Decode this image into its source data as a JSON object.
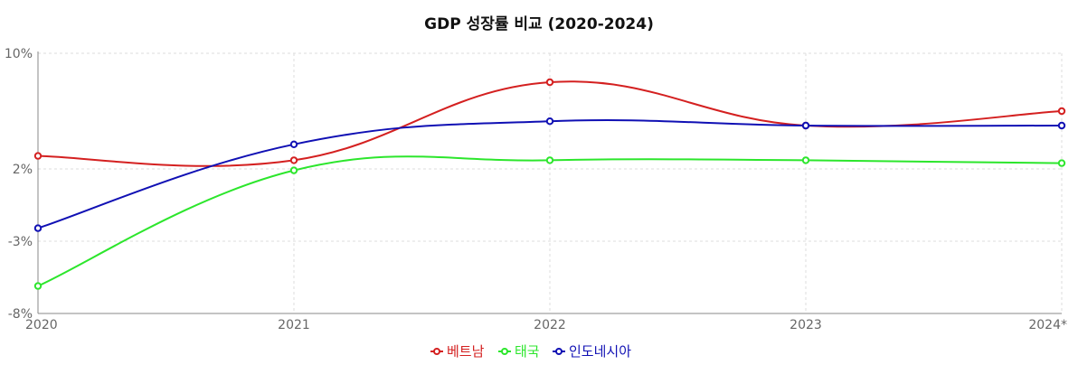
{
  "chart_data": {
    "type": "line",
    "title": "GDP 성장률 비교 (2020-2024)",
    "xlabel": "",
    "ylabel": "",
    "categories": [
      "2020",
      "2021",
      "2022",
      "2023",
      "2024*"
    ],
    "y_ticks": [
      "10%",
      "2%",
      "-3%",
      "-8%"
    ],
    "y_tick_values": [
      10,
      2,
      -3,
      -8
    ],
    "ylim": [
      -8,
      10
    ],
    "grid": true,
    "legend_position": "bottom-center",
    "series": [
      {
        "name": "베트남",
        "color": "#d42020",
        "values": [
          2.9,
          2.6,
          8.0,
          5.0,
          6.0
        ]
      },
      {
        "name": "태국",
        "color": "#2ce62c",
        "values": [
          -6.1,
          1.9,
          2.6,
          2.6,
          2.4
        ]
      },
      {
        "name": "인도네시아",
        "color": "#1010b4",
        "values": [
          -2.1,
          3.7,
          5.3,
          5.0,
          5.0
        ]
      }
    ]
  }
}
